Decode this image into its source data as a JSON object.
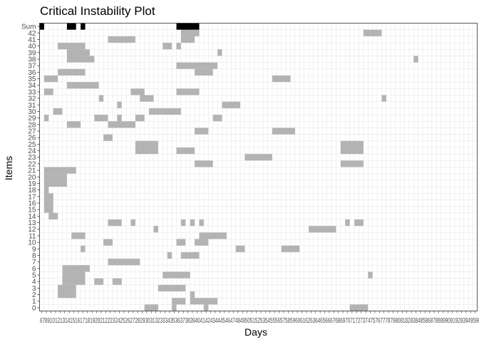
{
  "chart_data": {
    "type": "heatmap",
    "title": "Critical Instability Plot",
    "xlabel": "Days",
    "ylabel": "Items",
    "x_first_day": 6,
    "x_last_day": 102,
    "x_tick_labels_visible": "67891012131415161718192021222324252627282930313233343536373839404142434445464748495051525354555657585960616263646566676869707172737475767778798081828384858687888990919293949596979899100101",
    "y_categories": [
      "0",
      "1",
      "2",
      "3",
      "4",
      "5",
      "6",
      "7",
      "8",
      "9",
      "10",
      "11",
      "12",
      "13",
      "14",
      "15",
      "16",
      "17",
      "18",
      "19",
      "20",
      "21",
      "22",
      "23",
      "24",
      "25",
      "26",
      "27",
      "28",
      "29",
      "30",
      "31",
      "32",
      "33",
      "34",
      "35",
      "36",
      "37",
      "38",
      "39",
      "40",
      "41",
      "42",
      "Sum"
    ],
    "fill_colors": {
      "unstable": "#b3b3b3",
      "sum": "#000000",
      "grid": "#ebebeb"
    },
    "unstable_cells": {
      "0": [
        [
          29,
          31
        ],
        [
          35,
          35
        ],
        [
          42,
          42
        ],
        [
          74,
          77
        ]
      ],
      "1": [
        [
          35,
          37
        ],
        [
          39,
          44
        ]
      ],
      "2": [
        [
          10,
          13
        ],
        [
          39,
          39
        ]
      ],
      "3": [
        [
          10,
          13
        ],
        [
          32,
          37
        ]
      ],
      "4": [
        [
          11,
          15
        ],
        [
          18,
          19
        ],
        [
          22,
          23
        ]
      ],
      "5": [
        [
          11,
          15
        ],
        [
          33,
          38
        ],
        [
          78,
          78
        ]
      ],
      "6": [
        [
          11,
          16
        ]
      ],
      "7": [
        [
          21,
          27
        ]
      ],
      "8": [
        [
          34,
          34
        ],
        [
          37,
          40
        ]
      ],
      "9": [
        [
          15,
          15
        ],
        [
          49,
          50
        ],
        [
          59,
          62
        ]
      ],
      "10": [
        [
          20,
          21
        ],
        [
          36,
          37
        ],
        [
          40,
          42
        ]
      ],
      "11": [
        [
          13,
          15
        ],
        [
          41,
          46
        ]
      ],
      "12": [
        [
          31,
          31
        ],
        [
          65,
          70
        ]
      ],
      "13": [
        [
          21,
          23
        ],
        [
          26,
          26
        ],
        [
          37,
          37
        ],
        [
          39,
          39
        ],
        [
          41,
          41
        ],
        [
          73,
          73
        ],
        [
          75,
          76
        ]
      ],
      "14": [
        [
          8,
          9
        ]
      ],
      "15": [
        [
          7,
          8
        ]
      ],
      "16": [
        [
          7,
          8
        ]
      ],
      "17": [
        [
          7,
          8
        ]
      ],
      "18": [
        [
          7,
          7
        ]
      ],
      "19": [
        [
          7,
          11
        ]
      ],
      "20": [
        [
          7,
          11
        ]
      ],
      "21": [
        [
          7,
          13
        ]
      ],
      "22": [
        [
          40,
          43
        ],
        [
          72,
          76
        ]
      ],
      "23": [
        [
          51,
          56
        ]
      ],
      "24": [
        [
          27,
          31
        ],
        [
          36,
          39
        ],
        [
          72,
          76
        ]
      ],
      "25": [
        [
          27,
          31
        ],
        [
          72,
          76
        ]
      ],
      "26": [
        [
          20,
          21
        ]
      ],
      "27": [
        [
          40,
          42
        ],
        [
          57,
          61
        ]
      ],
      "28": [
        [
          12,
          14
        ],
        [
          21,
          26
        ]
      ],
      "29": [
        [
          7,
          7
        ],
        [
          18,
          20
        ],
        [
          23,
          23
        ],
        [
          27,
          28
        ],
        [
          44,
          45
        ]
      ],
      "30": [
        [
          9,
          10
        ],
        [
          30,
          36
        ]
      ],
      "31": [
        [
          23,
          23
        ],
        [
          46,
          49
        ]
      ],
      "32": [
        [
          19,
          19
        ],
        [
          28,
          30
        ],
        [
          81,
          81
        ]
      ],
      "33": [
        [
          7,
          8
        ],
        [
          26,
          28
        ],
        [
          36,
          40
        ]
      ],
      "34": [
        [
          12,
          18
        ]
      ],
      "35": [
        [
          7,
          9
        ],
        [
          57,
          60
        ]
      ],
      "36": [
        [
          10,
          15
        ],
        [
          40,
          43
        ]
      ],
      "37": [
        [
          36,
          44
        ]
      ],
      "38": [
        [
          12,
          17
        ],
        [
          88,
          88
        ]
      ],
      "39": [
        [
          12,
          16
        ],
        [
          45,
          45
        ]
      ],
      "40": [
        [
          10,
          15
        ],
        [
          33,
          34
        ],
        [
          36,
          36
        ]
      ],
      "41": [
        [
          21,
          26
        ],
        [
          37,
          39
        ]
      ],
      "42": [
        [
          37,
          40
        ],
        [
          77,
          80
        ]
      ],
      "Sum": [
        [
          6,
          6
        ],
        [
          12,
          13
        ],
        [
          15,
          15
        ],
        [
          36,
          40
        ]
      ]
    }
  }
}
